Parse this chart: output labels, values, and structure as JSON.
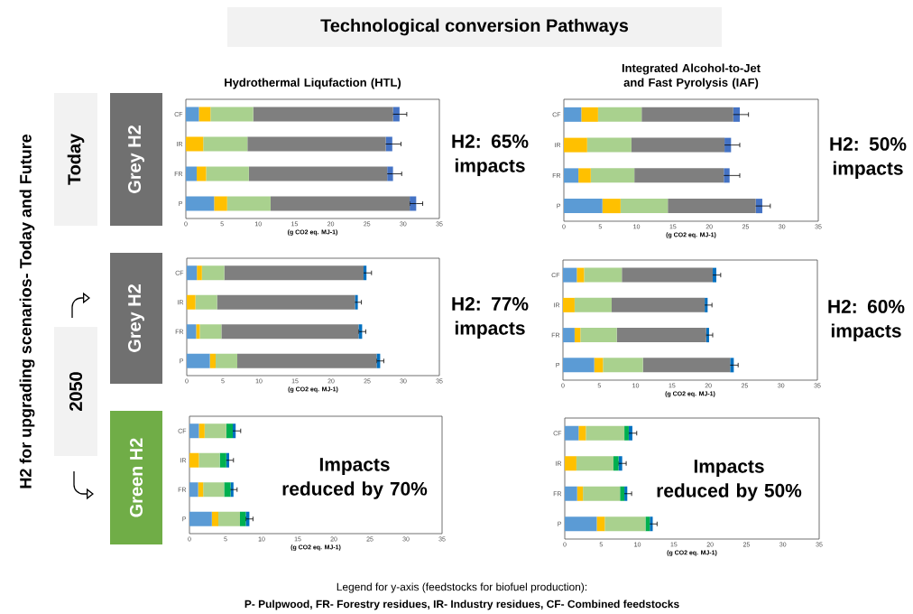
{
  "chart_data": [
    {
      "type": "bar",
      "orientation": "horizontal",
      "stacked": true,
      "title": "Hydrothermal Liqufaction (HTL)",
      "xlabel": "(g CO2 eq. MJ-1)",
      "categories": [
        "CF",
        "IR",
        "FR",
        "P"
      ],
      "xlim": [
        0,
        35
      ],
      "xticks": [
        0,
        5,
        10,
        15,
        20,
        25,
        30,
        35
      ],
      "series": [
        {
          "color": "#5b9bd5",
          "values": [
            1.8,
            0,
            1.5,
            3.9
          ]
        },
        {
          "color": "#ffc000",
          "values": [
            1.6,
            2.4,
            1.3,
            1.8
          ]
        },
        {
          "color": "#a9d18e",
          "values": [
            5.9,
            6.1,
            5.9,
            6.0
          ]
        },
        {
          "color": "#7f7f7f",
          "values": [
            19.3,
            19.1,
            19.1,
            19.2
          ]
        },
        {
          "color": "#4472c4",
          "values": [
            0.9,
            0.9,
            0.8,
            0.9
          ],
          "errors": [
            1.0,
            1.2,
            1.2,
            0.9
          ]
        }
      ],
      "annotations": [
        "H2: 65% impacts",
        "Technological conversion Pathways",
        "H2 for upgrading scenarios- Today and Future",
        "Today",
        "Grey H2"
      ]
    },
    {
      "type": "bar",
      "orientation": "horizontal",
      "stacked": true,
      "title": "Integrated Alcohol-to-Jet and Fast Pyrolysis (IAF)",
      "xlabel": "(g CO2 eq. MJ-1)",
      "categories": [
        "CF",
        "IR",
        "FR",
        "P"
      ],
      "xlim": [
        0,
        35
      ],
      "xticks": [
        0,
        5,
        10,
        15,
        20,
        25,
        30,
        35
      ],
      "series": [
        {
          "color": "#5b9bd5",
          "values": [
            2.4,
            0,
            2.0,
            5.3
          ]
        },
        {
          "color": "#ffc000",
          "values": [
            2.3,
            3.2,
            1.7,
            2.5
          ]
        },
        {
          "color": "#a9d18e",
          "values": [
            6.0,
            6.1,
            6.0,
            6.5
          ]
        },
        {
          "color": "#7f7f7f",
          "values": [
            12.6,
            12.8,
            12.3,
            12.1
          ]
        },
        {
          "color": "#4472c4",
          "values": [
            0.9,
            0.9,
            0.8,
            0.9
          ],
          "errors": [
            1.2,
            1.2,
            1.4,
            1.1
          ]
        }
      ],
      "annotations": [
        "H2: 50% impacts"
      ]
    },
    {
      "type": "bar",
      "orientation": "horizontal",
      "stacked": true,
      "xlabel": "(g CO2 eq. MJ-1)",
      "categories": [
        "CF",
        "IR",
        "FR",
        "P"
      ],
      "xlim": [
        0,
        35
      ],
      "xticks": [
        0,
        5,
        10,
        15,
        20,
        25,
        30,
        35
      ],
      "series": [
        {
          "color": "#5b9bd5",
          "values": [
            1.4,
            0,
            1.3,
            3.2
          ]
        },
        {
          "color": "#ffc000",
          "values": [
            0.7,
            1.2,
            0.5,
            0.8
          ]
        },
        {
          "color": "#a9d18e",
          "values": [
            3.1,
            3.0,
            3.0,
            3.0
          ]
        },
        {
          "color": "#7f7f7f",
          "values": [
            19.3,
            19.1,
            19.0,
            19.3
          ]
        },
        {
          "color": "#0070c0",
          "values": [
            0.4,
            0.4,
            0.5,
            0.5
          ],
          "errors": [
            0.7,
            0.5,
            0.5,
            0.5
          ]
        }
      ],
      "annotations": [
        "H2: 77% impacts",
        "2050",
        "Grey H2"
      ]
    },
    {
      "type": "bar",
      "orientation": "horizontal",
      "stacked": true,
      "xlabel": "(g CO2 eq. MJ-1)",
      "categories": [
        "CF",
        "IR",
        "FR",
        "P"
      ],
      "xlim": [
        0,
        35
      ],
      "xticks": [
        0,
        5,
        10,
        15,
        20,
        25,
        30,
        35
      ],
      "series": [
        {
          "color": "#5b9bd5",
          "values": [
            1.9,
            0,
            1.6,
            4.3
          ]
        },
        {
          "color": "#ffc000",
          "values": [
            1.0,
            1.6,
            0.8,
            1.2
          ]
        },
        {
          "color": "#a9d18e",
          "values": [
            5.2,
            5.1,
            5.0,
            5.5
          ]
        },
        {
          "color": "#7f7f7f",
          "values": [
            12.5,
            12.8,
            12.3,
            12.0
          ]
        },
        {
          "color": "#0070c0",
          "values": [
            0.5,
            0.4,
            0.4,
            0.5
          ],
          "errors": [
            0.6,
            0.6,
            0.5,
            0.6
          ]
        }
      ],
      "annotations": [
        "H2: 60% impacts"
      ]
    },
    {
      "type": "bar",
      "orientation": "horizontal",
      "stacked": true,
      "xlabel": "(g CO2 eq. MJ-1)",
      "categories": [
        "CF",
        "IR",
        "FR",
        "P"
      ],
      "xlim": [
        0,
        35
      ],
      "xticks": [
        0,
        5,
        10,
        15,
        20,
        25,
        30,
        35
      ],
      "series": [
        {
          "color": "#5b9bd5",
          "values": [
            1.3,
            0,
            1.2,
            3.1
          ]
        },
        {
          "color": "#ffc000",
          "values": [
            0.8,
            1.3,
            0.7,
            0.9
          ]
        },
        {
          "color": "#a9d18e",
          "values": [
            3.0,
            2.9,
            2.9,
            3.0
          ]
        },
        {
          "color": "#00b050",
          "values": [
            0.9,
            0.9,
            0.9,
            0.8
          ]
        },
        {
          "color": "#0070c0",
          "values": [
            0.4,
            0.4,
            0.4,
            0.5
          ],
          "errors": [
            0.7,
            0.6,
            0.5,
            0.5
          ]
        }
      ],
      "annotations": [
        "Impacts reduced by 70%",
        "Green H2"
      ]
    },
    {
      "type": "bar",
      "orientation": "horizontal",
      "stacked": true,
      "xlabel": "(g CO2 eq. MJ-1)",
      "categories": [
        "CF",
        "IR",
        "FR",
        "P"
      ],
      "xlim": [
        0,
        35
      ],
      "xticks": [
        0,
        5,
        10,
        15,
        20,
        25,
        30,
        35
      ],
      "series": [
        {
          "color": "#5b9bd5",
          "values": [
            1.9,
            0,
            1.7,
            4.4
          ]
        },
        {
          "color": "#ffc000",
          "values": [
            1.0,
            1.6,
            0.8,
            1.1
          ]
        },
        {
          "color": "#a9d18e",
          "values": [
            5.3,
            5.1,
            5.1,
            5.6
          ]
        },
        {
          "color": "#00b050",
          "values": [
            0.6,
            0.7,
            0.6,
            0.6
          ]
        },
        {
          "color": "#0070c0",
          "values": [
            0.5,
            0.5,
            0.4,
            0.4
          ],
          "errors": [
            0.6,
            0.55,
            0.6,
            0.6
          ]
        }
      ],
      "annotations": [
        "Impacts reduced by 50%",
        "Legend for y-axis (feedstocks for biofuel production):",
        "P- Pulpwood, FR- Forestry residues, IR- Industry residues, CF- Combined feedstocks"
      ]
    }
  ]
}
